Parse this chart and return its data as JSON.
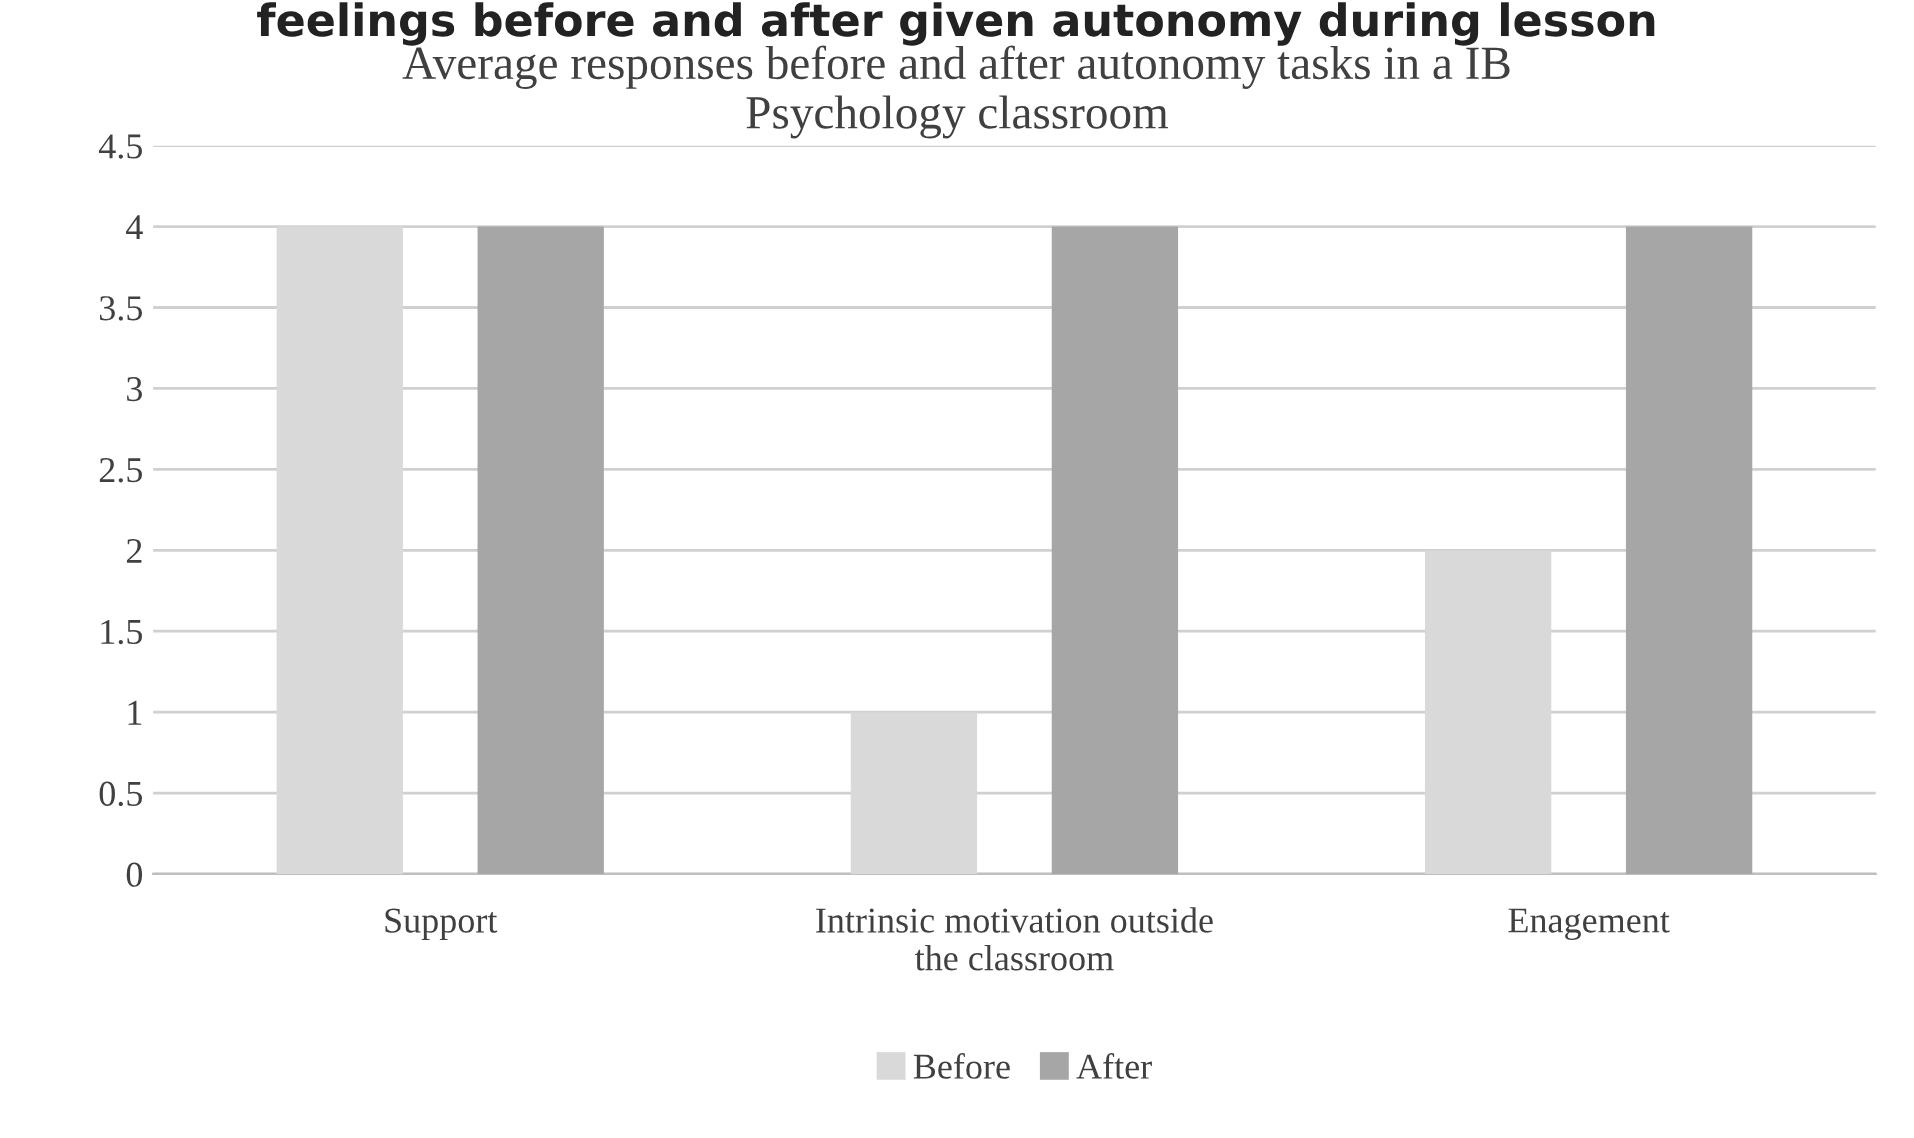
{
  "chart_data": {
    "type": "bar",
    "title": "Average responses before and after autonomy tasks in a IB Psychology classroom",
    "annotations": [
      "feelings before and after given autonomy during lesson"
    ],
    "categories": [
      "Support",
      "Intrinsic motivation outside the classroom",
      "Enagement"
    ],
    "series": [
      {
        "name": "Before",
        "color": "#d9d9d9",
        "values": [
          4,
          1,
          2
        ]
      },
      {
        "name": "After",
        "color": "#a6a6a6",
        "values": [
          4,
          4,
          4
        ]
      }
    ],
    "ylim": [
      0,
      4.5
    ],
    "yticks": [
      0,
      0.5,
      1,
      1.5,
      2,
      2.5,
      3,
      3.5,
      4,
      4.5
    ],
    "grid": "y",
    "legend": "bottom"
  }
}
